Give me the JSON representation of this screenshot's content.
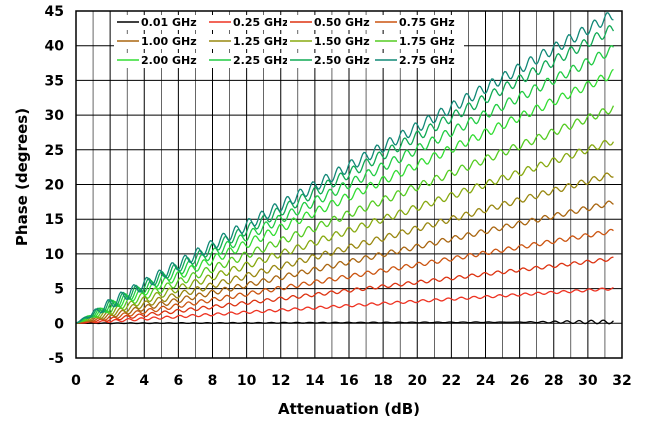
{
  "chart_data": {
    "type": "line",
    "title": "",
    "xlabel": "Attenuation (dB)",
    "ylabel": "Phase (degrees)",
    "xlim": [
      0,
      32
    ],
    "ylim": [
      -5,
      45
    ],
    "xticks": [
      0,
      2,
      4,
      6,
      8,
      10,
      12,
      14,
      16,
      18,
      20,
      22,
      24,
      26,
      28,
      30,
      32
    ],
    "yticks": [
      -5,
      0,
      5,
      10,
      15,
      20,
      25,
      30,
      35,
      40,
      45
    ],
    "grid": true,
    "legend_position": "top-left",
    "series": [
      {
        "name": "0.01 GHz",
        "color": "#000000",
        "x": [
          0,
          31.5
        ],
        "y": [
          0,
          0.2
        ]
      },
      {
        "name": "0.25 GHz",
        "color": "#ee3322",
        "x": [
          0,
          31.5
        ],
        "y": [
          0,
          5.0
        ]
      },
      {
        "name": "0.50 GHz",
        "color": "#dd3311",
        "x": [
          0,
          31.5
        ],
        "y": [
          0,
          9.3
        ]
      },
      {
        "name": "0.75 GHz",
        "color": "#cc5511",
        "x": [
          0,
          31.5
        ],
        "y": [
          0,
          13.3
        ]
      },
      {
        "name": "1.00 GHz",
        "color": "#aa6611",
        "x": [
          0,
          31.5
        ],
        "y": [
          0,
          17.4
        ]
      },
      {
        "name": "1.25 GHz",
        "color": "#998811",
        "x": [
          0,
          31.5
        ],
        "y": [
          0,
          21.5
        ]
      },
      {
        "name": "1.50 GHz",
        "color": "#88aa11",
        "x": [
          0,
          31.5
        ],
        "y": [
          0,
          26.3
        ]
      },
      {
        "name": "1.75 GHz",
        "color": "#55cc22",
        "x": [
          0,
          31.5
        ],
        "y": [
          0,
          31.0
        ]
      },
      {
        "name": "2.00 GHz",
        "color": "#33dd33",
        "x": [
          0,
          31.5
        ],
        "y": [
          0,
          36.0
        ]
      },
      {
        "name": "2.25 GHz",
        "color": "#22cc44",
        "x": [
          0,
          31.5
        ],
        "y": [
          0,
          39.5
        ]
      },
      {
        "name": "2.50 GHz",
        "color": "#11aa55",
        "x": [
          0,
          31.5
        ],
        "y": [
          0,
          42.5
        ]
      },
      {
        "name": "2.75 GHz",
        "color": "#118877",
        "x": [
          0,
          31.5
        ],
        "y": [
          0,
          44.5
        ]
      }
    ]
  }
}
